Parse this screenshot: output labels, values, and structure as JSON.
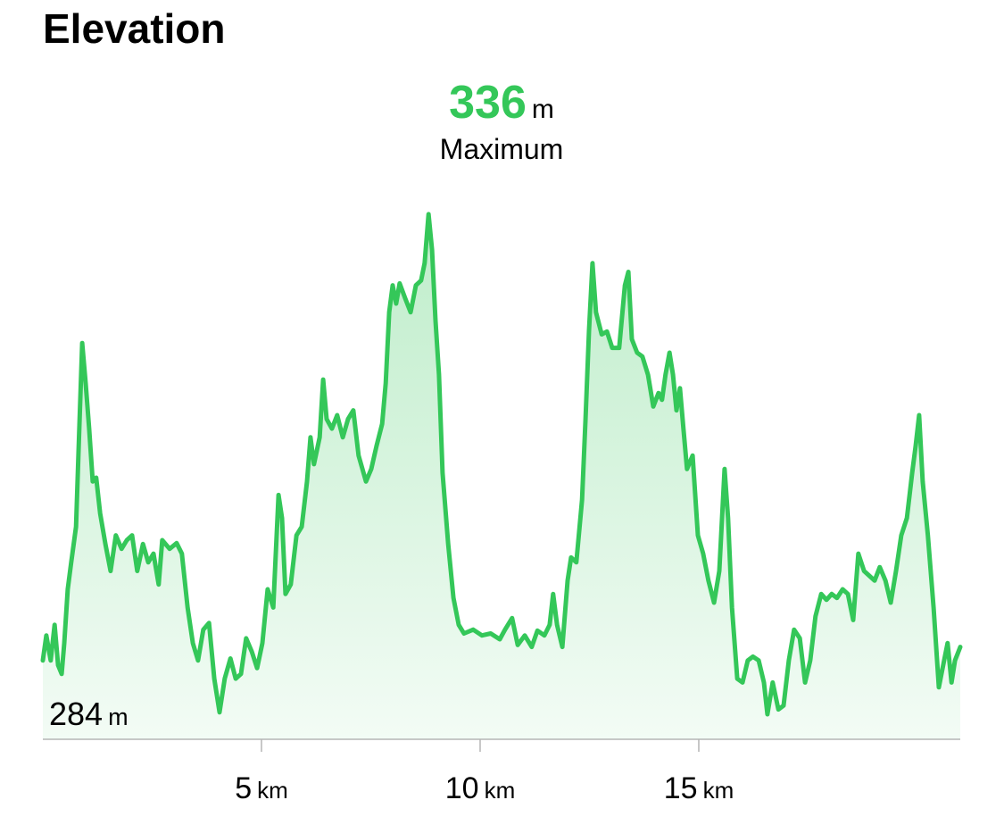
{
  "chart_data": {
    "type": "area",
    "title": "Elevation",
    "max_value": 336,
    "max_label": "Maximum",
    "min_value": 284,
    "unit": "m",
    "x_unit": "km",
    "color": "#34c759",
    "xlim": [
      0,
      20.98
    ],
    "ylim": [
      281.4,
      339.7
    ],
    "xticks": [
      {
        "value": 5,
        "label": "5"
      },
      {
        "value": 10,
        "label": "10"
      },
      {
        "value": 15,
        "label": "15"
      }
    ],
    "x": [
      0.0,
      0.08,
      0.18,
      0.27,
      0.35,
      0.43,
      0.49,
      0.57,
      0.65,
      0.76,
      0.82,
      0.9,
      0.98,
      1.06,
      1.14,
      1.22,
      1.31,
      1.43,
      1.55,
      1.67,
      1.8,
      1.92,
      2.04,
      2.16,
      2.29,
      2.41,
      2.53,
      2.65,
      2.73,
      2.9,
      3.06,
      3.18,
      3.31,
      3.43,
      3.55,
      3.67,
      3.8,
      3.92,
      4.04,
      4.16,
      4.29,
      4.41,
      4.53,
      4.65,
      4.78,
      4.9,
      5.02,
      5.14,
      5.27,
      5.39,
      5.47,
      5.55,
      5.67,
      5.8,
      5.92,
      6.04,
      6.12,
      6.2,
      6.33,
      6.41,
      6.49,
      6.61,
      6.73,
      6.86,
      6.98,
      7.1,
      7.22,
      7.39,
      7.51,
      7.63,
      7.76,
      7.84,
      7.92,
      8.0,
      8.08,
      8.16,
      8.29,
      8.41,
      8.53,
      8.65,
      8.73,
      8.82,
      8.9,
      8.98,
      9.06,
      9.14,
      9.27,
      9.39,
      9.51,
      9.63,
      9.84,
      10.04,
      10.24,
      10.45,
      10.57,
      10.73,
      10.86,
      11.02,
      11.18,
      11.31,
      11.47,
      11.59,
      11.67,
      11.76,
      11.88,
      12.0,
      12.08,
      12.2,
      12.33,
      12.41,
      12.49,
      12.57,
      12.65,
      12.78,
      12.9,
      13.02,
      13.18,
      13.31,
      13.39,
      13.47,
      13.59,
      13.71,
      13.84,
      13.96,
      14.08,
      14.16,
      14.24,
      14.33,
      14.41,
      14.49,
      14.57,
      14.65,
      14.73,
      14.86,
      14.98,
      15.1,
      15.22,
      15.35,
      15.47,
      15.59,
      15.67,
      15.76,
      15.88,
      16.0,
      16.12,
      16.24,
      16.37,
      16.49,
      16.57,
      16.69,
      16.82,
      16.94,
      17.06,
      17.18,
      17.31,
      17.43,
      17.55,
      17.67,
      17.8,
      17.92,
      18.04,
      18.16,
      18.29,
      18.41,
      18.53,
      18.65,
      18.78,
      18.9,
      19.02,
      19.14,
      19.27,
      19.39,
      19.51,
      19.63,
      19.76,
      19.88,
      19.96,
      20.04,
      20.12,
      20.24,
      20.37,
      20.49,
      20.61,
      20.69,
      20.78,
      20.86,
      20.98
    ],
    "values": [
      289.6,
      292.2,
      289.6,
      293.3,
      289.1,
      288.2,
      291.4,
      297.0,
      299.8,
      303.5,
      311.9,
      322.6,
      318.4,
      313.7,
      308.2,
      308.6,
      304.9,
      301.7,
      298.9,
      302.6,
      301.2,
      302.1,
      302.6,
      298.9,
      301.7,
      299.8,
      300.7,
      297.5,
      302.1,
      301.2,
      301.8,
      300.7,
      295.1,
      291.4,
      289.6,
      292.8,
      293.5,
      287.7,
      284.2,
      287.7,
      289.8,
      287.7,
      288.2,
      291.9,
      290.5,
      288.8,
      291.4,
      297.0,
      295.1,
      306.8,
      304.4,
      296.5,
      297.5,
      302.6,
      303.5,
      308.2,
      312.8,
      310.0,
      312.8,
      318.8,
      314.7,
      313.7,
      315.1,
      312.8,
      314.7,
      315.6,
      310.9,
      308.2,
      309.5,
      311.9,
      314.2,
      318.4,
      325.8,
      328.6,
      326.7,
      328.8,
      327.2,
      325.8,
      328.6,
      329.1,
      330.9,
      336.0,
      332.3,
      324.9,
      319.3,
      309.1,
      301.7,
      296.1,
      293.3,
      292.4,
      292.8,
      292.2,
      292.4,
      291.8,
      292.8,
      294.0,
      291.2,
      292.2,
      291.0,
      292.7,
      292.2,
      293.3,
      296.5,
      293.3,
      291.0,
      297.9,
      300.3,
      299.8,
      306.3,
      314.7,
      323.9,
      330.9,
      325.8,
      323.5,
      323.8,
      322.1,
      322.1,
      328.6,
      330.0,
      323.0,
      321.6,
      321.2,
      319.3,
      316.0,
      317.4,
      316.7,
      319.3,
      321.6,
      319.3,
      315.6,
      317.9,
      313.7,
      309.5,
      310.9,
      302.6,
      300.7,
      297.9,
      295.6,
      298.9,
      309.5,
      304.4,
      295.1,
      287.7,
      287.3,
      289.6,
      290.0,
      289.6,
      287.3,
      284.0,
      287.3,
      284.5,
      284.9,
      289.6,
      292.8,
      291.9,
      287.3,
      289.6,
      294.2,
      296.5,
      295.9,
      296.5,
      296.1,
      297.0,
      296.5,
      293.8,
      300.7,
      298.9,
      298.4,
      297.9,
      299.3,
      297.9,
      295.6,
      298.9,
      302.6,
      304.4,
      309.1,
      311.9,
      315.1,
      308.2,
      302.6,
      295.1,
      286.8,
      289.6,
      291.4,
      287.3,
      289.6,
      291.0
    ]
  }
}
